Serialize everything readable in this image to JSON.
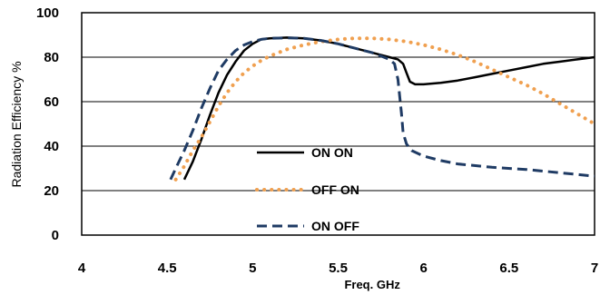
{
  "chart_data": {
    "type": "line",
    "title": "",
    "xlabel": "Freq. GHz",
    "ylabel": "Radiation Efficiency %",
    "xlim": [
      4,
      7
    ],
    "ylim": [
      0,
      100
    ],
    "xticks": [
      4,
      4.5,
      5,
      5.5,
      6,
      6.5,
      7
    ],
    "xtick_labels": [
      "4",
      "4.5",
      "5",
      "5.5",
      "6",
      "6.5",
      "7"
    ],
    "yticks": [
      0,
      20,
      40,
      60,
      80,
      100
    ],
    "ytick_labels": [
      "0",
      "20",
      "40",
      "60",
      "80",
      "100"
    ],
    "grid": "horizontal",
    "legend_position": "center-left inside plot",
    "series": [
      {
        "name": "ON ON",
        "color": "#000000",
        "style": "solid",
        "x": [
          4.6,
          4.65,
          4.7,
          4.75,
          4.8,
          4.85,
          4.9,
          4.95,
          5.0,
          5.05,
          5.1,
          5.2,
          5.3,
          5.4,
          5.5,
          5.6,
          5.7,
          5.8,
          5.85,
          5.88,
          5.9,
          5.92,
          5.95,
          6.0,
          6.1,
          6.2,
          6.3,
          6.4,
          6.5,
          6.6,
          6.7,
          6.8,
          6.9,
          7.0
        ],
        "y": [
          25,
          33,
          43,
          54,
          64,
          72,
          78,
          83,
          86,
          88,
          88.5,
          88.8,
          88.5,
          87.5,
          86,
          84,
          82,
          80,
          79,
          77,
          73,
          69,
          67.8,
          67.8,
          68.5,
          69.5,
          71,
          72.5,
          74,
          75.5,
          77,
          78,
          79,
          80
        ]
      },
      {
        "name": "OFF ON",
        "color": "#f0a050",
        "style": "dotted",
        "x": [
          4.55,
          4.6,
          4.65,
          4.7,
          4.75,
          4.8,
          4.85,
          4.9,
          4.95,
          5.0,
          5.05,
          5.1,
          5.2,
          5.3,
          5.4,
          5.5,
          5.6,
          5.7,
          5.8,
          5.9,
          6.0,
          6.1,
          6.2,
          6.3,
          6.4,
          6.5,
          6.6,
          6.7,
          6.8,
          6.9,
          7.0
        ],
        "y": [
          25,
          31,
          38,
          44,
          51,
          58,
          64,
          69,
          73,
          76,
          78.5,
          80.5,
          83.5,
          85.5,
          87,
          88,
          88.5,
          88.5,
          88,
          87,
          85.5,
          83.5,
          81,
          78,
          74.5,
          71,
          67.5,
          63.5,
          59,
          54.5,
          50
        ]
      },
      {
        "name": "ON OFF",
        "color": "#1f3b64",
        "style": "dashed",
        "x": [
          4.52,
          4.55,
          4.6,
          4.65,
          4.7,
          4.75,
          4.8,
          4.85,
          4.9,
          4.95,
          5.0,
          5.05,
          5.1,
          5.2,
          5.3,
          5.4,
          5.5,
          5.6,
          5.7,
          5.8,
          5.83,
          5.85,
          5.87,
          5.88,
          5.9,
          5.93,
          6.0,
          6.1,
          6.2,
          6.4,
          6.6,
          6.8,
          7.0
        ],
        "y": [
          25,
          30,
          38,
          47,
          57,
          66,
          74,
          79,
          83,
          85.5,
          87,
          88,
          88.5,
          88.7,
          88.5,
          87.5,
          86,
          84,
          82,
          79,
          77,
          70,
          55,
          46,
          41,
          38,
          35.5,
          33.5,
          32,
          30.5,
          29.5,
          28,
          26.5
        ]
      }
    ]
  }
}
